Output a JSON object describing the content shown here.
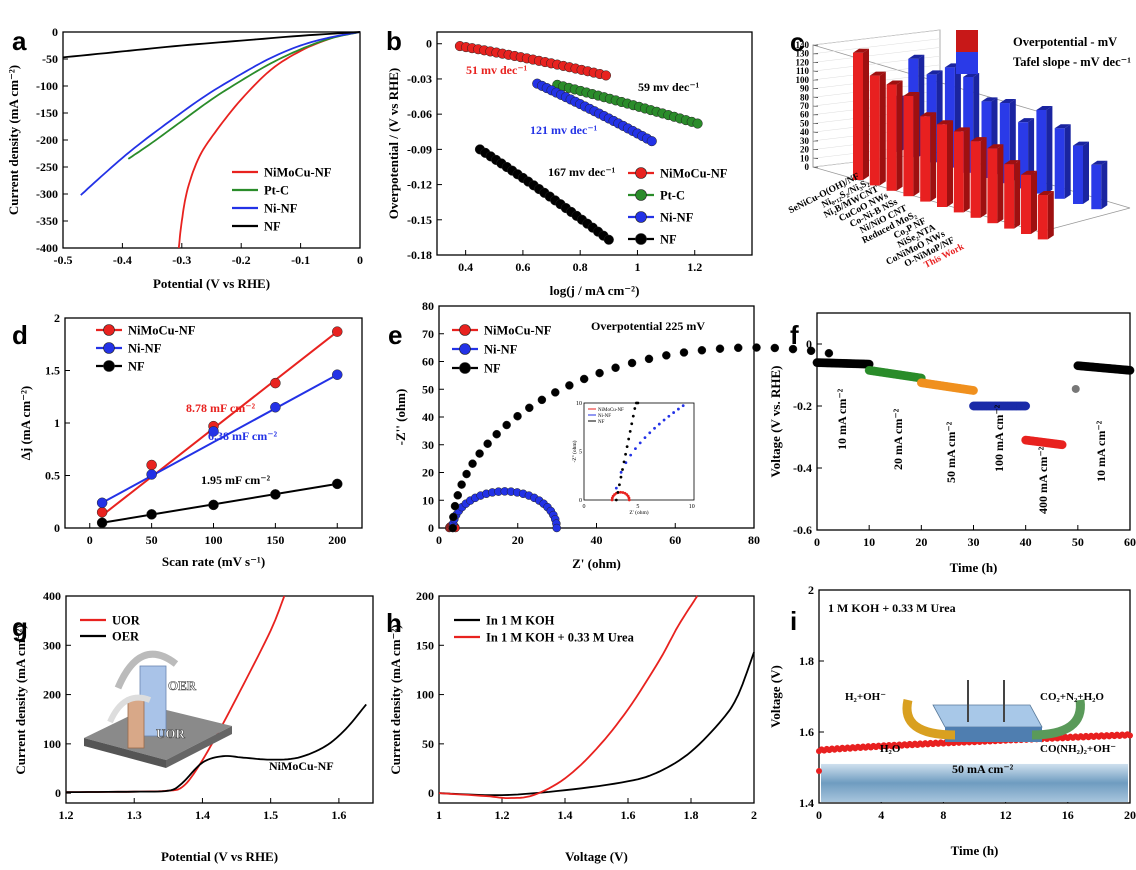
{
  "panels": [
    {
      "id": "a",
      "label": "a"
    },
    {
      "id": "b",
      "label": "b"
    },
    {
      "id": "c",
      "label": "c"
    },
    {
      "id": "d",
      "label": "d"
    },
    {
      "id": "e",
      "label": "e"
    },
    {
      "id": "f",
      "label": "f"
    },
    {
      "id": "g",
      "label": "g"
    },
    {
      "id": "h",
      "label": "h"
    },
    {
      "id": "i",
      "label": "i"
    }
  ],
  "colors": {
    "NiMoCu-NF": "#e8221f",
    "Pt-C": "#2a8c2a",
    "Ni-NF": "#2332e6",
    "NF": "#000000",
    "UOR": "#e8221f",
    "OER": "#000000",
    "orange": "#f0901e",
    "darkblue": "#1a2aa8"
  },
  "chart_data": [
    {
      "id": "a",
      "type": "line",
      "xlabel": "Potential (V vs RHE)",
      "ylabel": "Current density (mA cm⁻²)",
      "xlim": [
        -0.5,
        0.0
      ],
      "ylim": [
        -400,
        0
      ],
      "xticks": [
        -0.5,
        -0.4,
        -0.3,
        -0.2,
        -0.1,
        0.0
      ],
      "yticks": [
        0,
        -50,
        -100,
        -150,
        -200,
        -250,
        -300,
        -350,
        -400
      ],
      "legend": [
        "NiMoCu-NF",
        "Pt-C",
        "Ni-NF",
        "NF"
      ],
      "series": [
        {
          "name": "NiMoCu-NF",
          "x": [
            -0.305,
            -0.3,
            -0.29,
            -0.27,
            -0.24,
            -0.2,
            -0.15,
            -0.1,
            -0.05,
            -0.02,
            0.0
          ],
          "y": [
            -400,
            -350,
            -290,
            -230,
            -180,
            -125,
            -70,
            -35,
            -12,
            -4,
            0
          ]
        },
        {
          "name": "Pt-C",
          "x": [
            -0.39,
            -0.35,
            -0.3,
            -0.25,
            -0.2,
            -0.15,
            -0.1,
            -0.05,
            0.0
          ],
          "y": [
            -235,
            -205,
            -165,
            -125,
            -90,
            -58,
            -32,
            -12,
            0
          ]
        },
        {
          "name": "Ni-NF",
          "x": [
            -0.47,
            -0.43,
            -0.38,
            -0.32,
            -0.26,
            -0.2,
            -0.15,
            -0.1,
            -0.05,
            0.0
          ],
          "y": [
            -302,
            -262,
            -215,
            -165,
            -118,
            -78,
            -48,
            -25,
            -10,
            0
          ]
        },
        {
          "name": "NF",
          "x": [
            -0.5,
            -0.4,
            -0.3,
            -0.2,
            -0.1,
            0.0
          ],
          "y": [
            -47,
            -36,
            -25,
            -16,
            -7,
            0
          ]
        }
      ]
    },
    {
      "id": "b",
      "type": "scatter",
      "xlabel": "log(j / mA cm⁻²)",
      "ylabel": "Overpotential / (V vs RHE)",
      "xlim": [
        0.3,
        1.4
      ],
      "ylim": [
        -0.18,
        0.01
      ],
      "xticks": [
        0.4,
        0.6,
        0.8,
        1.0,
        1.2
      ],
      "yticks": [
        0.0,
        -0.03,
        -0.06,
        -0.09,
        -0.12,
        -0.15,
        -0.18
      ],
      "legend": [
        "NiMoCu-NF",
        "Pt-C",
        "Ni-NF",
        "NF"
      ],
      "series": [
        {
          "name": "NiMoCu-NF",
          "x0": 0.38,
          "x1": 0.89,
          "y0": -0.002,
          "y1": -0.027,
          "curv": 0.004,
          "slope": "51 mv dec⁻¹"
        },
        {
          "name": "Pt-C",
          "x0": 0.72,
          "x1": 1.21,
          "y0": -0.035,
          "y1": -0.068,
          "curv": 0.002,
          "slope": "59 mv dec⁻¹"
        },
        {
          "name": "Ni-NF",
          "x0": 0.65,
          "x1": 1.05,
          "y0": -0.034,
          "y1": -0.083,
          "curv": 0.004,
          "slope": "121 mv dec⁻¹"
        },
        {
          "name": "NF",
          "x0": 0.45,
          "x1": 0.9,
          "y0": -0.09,
          "y1": -0.167,
          "curv": 0.006,
          "slope": "167 mv dec⁻¹"
        }
      ]
    },
    {
      "id": "c",
      "type": "bar",
      "zlim": [
        0,
        140
      ],
      "zticks": [
        0,
        10,
        20,
        30,
        40,
        50,
        60,
        70,
        80,
        90,
        100,
        110,
        120,
        130,
        140
      ],
      "legend": [
        "Overpotential - mV",
        "Tafel slope - mV dec⁻¹"
      ],
      "categories": [
        "SeNiCu-O(OH)/NF",
        "Ni₀.₁₂S₂/Ni₃S₂",
        "Ni₂B/MWCNT",
        "CuCoO NWs",
        "Co-Ni-B NSs",
        "Ni/NiO CNT",
        "Reduced MoS₂",
        "Co₂P NF",
        "NiSe₂NTA",
        "CoNiMoO NWs",
        "O-NiMoP/NF",
        "This Work"
      ],
      "series": [
        {
          "name": "Overpotential - mV",
          "values": [
            146,
            126,
            122,
            115,
            98,
            95,
            93,
            88,
            86,
            74,
            68,
            51
          ]
        },
        {
          "name": "Tafel slope - mV dec⁻¹",
          "values": [
            60,
            113,
            101,
            115,
            110,
            88,
            92,
            76,
            96,
            81,
            67,
            51
          ]
        }
      ]
    },
    {
      "id": "d",
      "type": "line",
      "xlabel": "Scan rate (mV s⁻¹)",
      "ylabel": "Δj (mA cm⁻²)",
      "xlim": [
        -20,
        220
      ],
      "ylim": [
        0.0,
        2.0
      ],
      "xticks": [
        0,
        50,
        100,
        150,
        200
      ],
      "yticks": [
        0.0,
        0.5,
        1.0,
        1.5,
        2.0
      ],
      "legend": [
        "NiMoCu-NF",
        "Ni-NF",
        "NF"
      ],
      "series": [
        {
          "name": "NiMoCu-NF",
          "x": [
            10,
            50,
            100,
            150,
            200
          ],
          "y": [
            0.15,
            0.6,
            0.97,
            1.38,
            1.87
          ],
          "fit": [
            0.12,
            1.87
          ],
          "label": "8.78 mF cm⁻²"
        },
        {
          "name": "Ni-NF",
          "x": [
            10,
            50,
            100,
            150,
            200
          ],
          "y": [
            0.24,
            0.51,
            0.92,
            1.15,
            1.46
          ],
          "fit": [
            0.24,
            1.46
          ],
          "label": "6.38 mF cm⁻²"
        },
        {
          "name": "NF",
          "x": [
            10,
            50,
            100,
            150,
            200
          ],
          "y": [
            0.05,
            0.13,
            0.22,
            0.32,
            0.42
          ],
          "fit": [
            0.05,
            0.42
          ],
          "label": "1.95 mF cm⁻²"
        }
      ]
    },
    {
      "id": "e",
      "type": "scatter",
      "xlabel": "Z' (ohm)",
      "ylabel": "-Z'' (ohm)",
      "xlim": [
        0,
        80
      ],
      "ylim": [
        0,
        80
      ],
      "xticks": [
        0,
        20,
        40,
        60,
        80
      ],
      "yticks": [
        0,
        10,
        20,
        30,
        40,
        50,
        60,
        70,
        80
      ],
      "title": "Overpotential 225 mV",
      "legend": [
        "NiMoCu-NF",
        "Ni-NF",
        "NF"
      ],
      "series": [
        {
          "name": "NiMoCu-NF",
          "center": 3.4,
          "radius": 0.8
        },
        {
          "name": "Ni-NF",
          "center": 16.7,
          "radius": 13.2
        },
        {
          "name": "NF",
          "center": 80,
          "radius": 76.5
        }
      ],
      "inset": {
        "xticks": [
          0,
          5,
          10
        ],
        "yticks": [
          0,
          5,
          10
        ],
        "xlabel": "Z' (ohm)",
        "ylabel": "-Z'' (ohm)",
        "legend": [
          "NiMoCu-NF",
          "Ni-NF",
          "NF"
        ]
      }
    },
    {
      "id": "f",
      "type": "line",
      "xlabel": "Time (h)",
      "ylabel": "Voltage (V vs. RHE)",
      "xlim": [
        0,
        60
      ],
      "ylim": [
        -0.6,
        0.1
      ],
      "xticks": [
        0,
        10,
        20,
        30,
        40,
        50,
        60
      ],
      "yticks": [
        0.0,
        -0.2,
        -0.4,
        -0.6
      ],
      "segments": [
        {
          "t": [
            0,
            10
          ],
          "v": [
            -0.06,
            -0.065
          ],
          "color": "#000000",
          "label": "10 mA cm⁻²"
        },
        {
          "t": [
            10,
            20
          ],
          "v": [
            -0.085,
            -0.11
          ],
          "color": "#2a8c2a",
          "label": "20 mA cm⁻²"
        },
        {
          "t": [
            20,
            30
          ],
          "v": [
            -0.125,
            -0.15
          ],
          "color": "#f0901e",
          "label": "50 mA cm⁻²"
        },
        {
          "t": [
            30,
            40
          ],
          "v": [
            -0.2,
            -0.2
          ],
          "color": "#1a2aa8",
          "label": "100 mA cm⁻²"
        },
        {
          "t": [
            40,
            47
          ],
          "v": [
            -0.31,
            -0.325
          ],
          "color": "#e8221f",
          "label": "400 mA cm⁻²"
        },
        {
          "t": [
            50,
            60
          ],
          "v": [
            -0.07,
            -0.085
          ],
          "color": "#000000",
          "label": "10 mA cm⁻²"
        }
      ]
    },
    {
      "id": "g",
      "type": "line",
      "xlabel": "Potential (V vs RHE)",
      "ylabel": "Current density (mA cm⁻²)",
      "xlim": [
        1.2,
        1.65
      ],
      "ylim": [
        -20,
        400
      ],
      "xticks": [
        1.2,
        1.3,
        1.4,
        1.5,
        1.6
      ],
      "yticks": [
        0,
        100,
        200,
        300,
        400
      ],
      "legend": [
        "UOR",
        "OER"
      ],
      "annotation": "NiMoCu-NF",
      "inset_labels": [
        "OER",
        "UOR"
      ],
      "series": [
        {
          "name": "UOR",
          "x": [
            1.2,
            1.3,
            1.35,
            1.37,
            1.39,
            1.42,
            1.46,
            1.5,
            1.52
          ],
          "y": [
            2,
            3,
            5,
            12,
            45,
            115,
            220,
            330,
            400
          ]
        },
        {
          "name": "OER",
          "x": [
            1.2,
            1.3,
            1.35,
            1.37,
            1.4,
            1.43,
            1.46,
            1.5,
            1.54,
            1.58,
            1.61,
            1.64
          ],
          "y": [
            2,
            3,
            5,
            20,
            62,
            75,
            72,
            68,
            72,
            95,
            130,
            180
          ]
        }
      ]
    },
    {
      "id": "h",
      "type": "line",
      "xlabel": "Voltage (V)",
      "ylabel": "Current density (mA cm⁻²)",
      "xlim": [
        1.0,
        2.0
      ],
      "ylim": [
        -10,
        200
      ],
      "xticks": [
        1.0,
        1.2,
        1.4,
        1.6,
        1.8,
        2.0
      ],
      "yticks": [
        0,
        50,
        100,
        150,
        200
      ],
      "legend": [
        "In 1 M KOH",
        "In 1 M KOH + 0.33 M Urea"
      ],
      "series": [
        {
          "name": "In 1 M KOH",
          "x": [
            1.0,
            1.2,
            1.4,
            1.6,
            1.7,
            1.8,
            1.9,
            1.95,
            2.0
          ],
          "y": [
            0,
            -2,
            3,
            12,
            22,
            42,
            75,
            100,
            143
          ]
        },
        {
          "name": "In 1 M KOH + 0.33 M Urea",
          "x": [
            1.0,
            1.15,
            1.22,
            1.3,
            1.4,
            1.5,
            1.6,
            1.7,
            1.76,
            1.82
          ],
          "y": [
            0,
            -3,
            -5,
            -2,
            15,
            45,
            85,
            135,
            170,
            200
          ]
        }
      ]
    },
    {
      "id": "i",
      "type": "line",
      "xlabel": "Time (h)",
      "ylabel": "Voltage (V)",
      "xlim": [
        0,
        20
      ],
      "ylim": [
        1.4,
        2.0
      ],
      "xticks": [
        0,
        4,
        8,
        12,
        16,
        20
      ],
      "yticks": [
        1.4,
        1.6,
        1.8,
        2.0
      ],
      "title": "1 M KOH + 0.33 M Urea",
      "current_label": "50 mA cm⁻²",
      "scheme": {
        "left_top": "H₂+OH⁻",
        "left_bottom": "H₂O",
        "right_top": "CO₂+N₂+H₂O",
        "right_bottom": "CO(NH₂)₂+OH⁻"
      },
      "series": [
        {
          "name": "",
          "x0": 0,
          "x1": 20,
          "y0": 1.548,
          "y1": 1.592,
          "start": 1.49
        }
      ]
    }
  ]
}
